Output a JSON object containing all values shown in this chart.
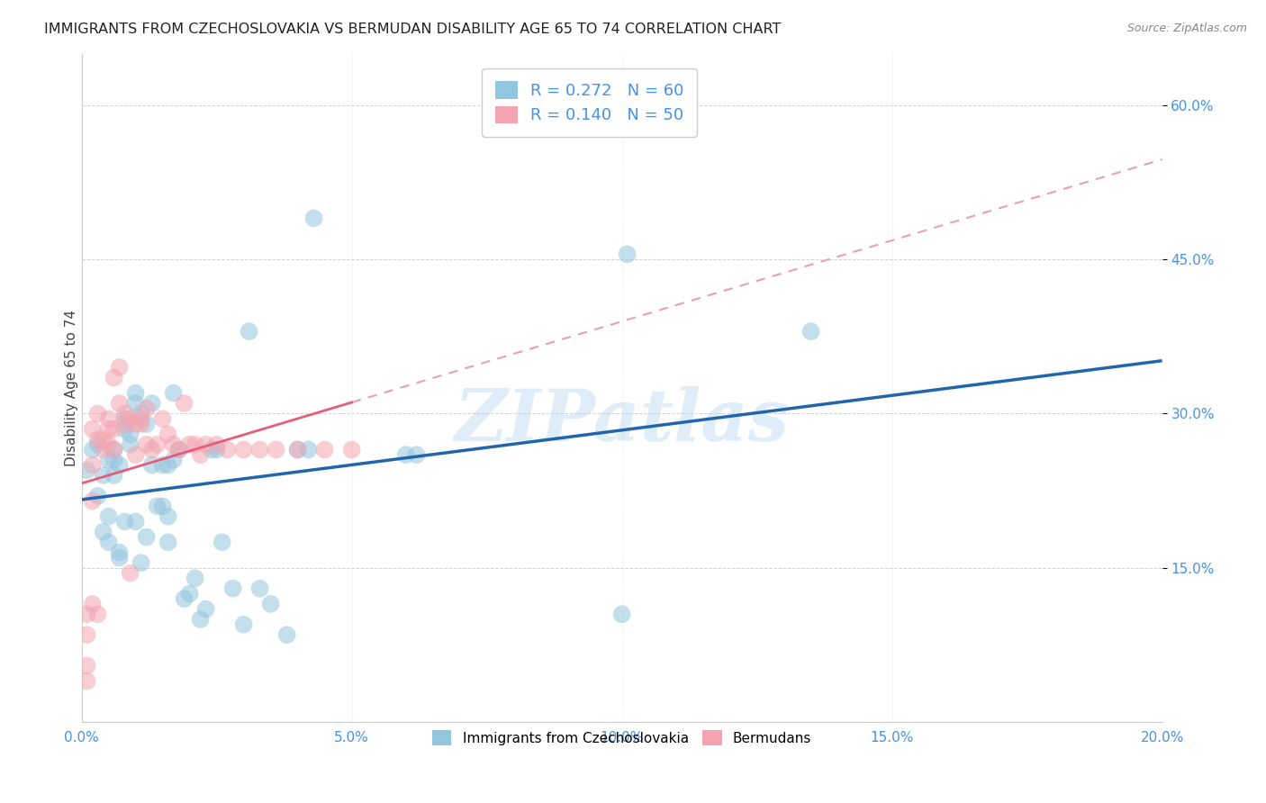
{
  "title": "IMMIGRANTS FROM CZECHOSLOVAKIA VS BERMUDAN DISABILITY AGE 65 TO 74 CORRELATION CHART",
  "source": "Source: ZipAtlas.com",
  "xlabel": "",
  "ylabel": "Disability Age 65 to 74",
  "xmin": 0.0,
  "xmax": 0.2,
  "ymin": 0.0,
  "ymax": 0.65,
  "x_tick_labels": [
    "0.0%",
    "5.0%",
    "10.0%",
    "15.0%",
    "20.0%"
  ],
  "x_tick_vals": [
    0.0,
    0.05,
    0.1,
    0.15,
    0.2
  ],
  "y_tick_labels": [
    "15.0%",
    "30.0%",
    "45.0%",
    "60.0%"
  ],
  "y_tick_vals": [
    0.15,
    0.3,
    0.45,
    0.6
  ],
  "blue_color": "#92c5de",
  "pink_color": "#f4a4b0",
  "blue_line_color": "#2166ac",
  "pink_line_color": "#e85c7a",
  "pink_dash_color": "#e8a0b0",
  "R_blue": 0.272,
  "N_blue": 60,
  "R_pink": 0.14,
  "N_pink": 50,
  "watermark": "ZIPatlas",
  "blue_scatter_x": [
    0.001,
    0.002,
    0.003,
    0.003,
    0.004,
    0.004,
    0.005,
    0.005,
    0.005,
    0.006,
    0.006,
    0.006,
    0.007,
    0.007,
    0.007,
    0.008,
    0.008,
    0.008,
    0.009,
    0.009,
    0.01,
    0.01,
    0.01,
    0.011,
    0.011,
    0.012,
    0.012,
    0.013,
    0.013,
    0.014,
    0.015,
    0.015,
    0.016,
    0.016,
    0.016,
    0.017,
    0.017,
    0.018,
    0.019,
    0.02,
    0.021,
    0.022,
    0.023,
    0.024,
    0.025,
    0.026,
    0.028,
    0.03,
    0.031,
    0.033,
    0.035,
    0.038,
    0.04,
    0.042,
    0.043,
    0.06,
    0.062,
    0.1,
    0.101,
    0.135
  ],
  "blue_scatter_y": [
    0.245,
    0.265,
    0.27,
    0.22,
    0.24,
    0.185,
    0.255,
    0.2,
    0.175,
    0.265,
    0.255,
    0.24,
    0.165,
    0.16,
    0.25,
    0.295,
    0.285,
    0.195,
    0.28,
    0.27,
    0.32,
    0.31,
    0.195,
    0.3,
    0.155,
    0.29,
    0.18,
    0.31,
    0.25,
    0.21,
    0.25,
    0.21,
    0.25,
    0.2,
    0.175,
    0.32,
    0.255,
    0.265,
    0.12,
    0.125,
    0.14,
    0.1,
    0.11,
    0.265,
    0.265,
    0.175,
    0.13,
    0.095,
    0.38,
    0.13,
    0.115,
    0.085,
    0.265,
    0.265,
    0.49,
    0.26,
    0.26,
    0.105,
    0.455,
    0.38
  ],
  "pink_scatter_x": [
    0.001,
    0.001,
    0.001,
    0.001,
    0.002,
    0.002,
    0.002,
    0.002,
    0.003,
    0.003,
    0.003,
    0.004,
    0.004,
    0.005,
    0.005,
    0.005,
    0.006,
    0.006,
    0.006,
    0.007,
    0.007,
    0.008,
    0.008,
    0.009,
    0.009,
    0.01,
    0.01,
    0.011,
    0.011,
    0.012,
    0.012,
    0.013,
    0.014,
    0.015,
    0.016,
    0.017,
    0.018,
    0.019,
    0.02,
    0.021,
    0.022,
    0.023,
    0.025,
    0.027,
    0.03,
    0.033,
    0.036,
    0.04,
    0.045,
    0.05
  ],
  "pink_scatter_y": [
    0.085,
    0.105,
    0.055,
    0.04,
    0.285,
    0.25,
    0.215,
    0.115,
    0.3,
    0.275,
    0.105,
    0.275,
    0.265,
    0.295,
    0.285,
    0.27,
    0.335,
    0.285,
    0.265,
    0.345,
    0.31,
    0.3,
    0.29,
    0.295,
    0.145,
    0.29,
    0.26,
    0.295,
    0.29,
    0.305,
    0.27,
    0.265,
    0.27,
    0.295,
    0.28,
    0.27,
    0.265,
    0.31,
    0.27,
    0.27,
    0.26,
    0.27,
    0.27,
    0.265,
    0.265,
    0.265,
    0.265,
    0.265,
    0.265,
    0.265
  ]
}
